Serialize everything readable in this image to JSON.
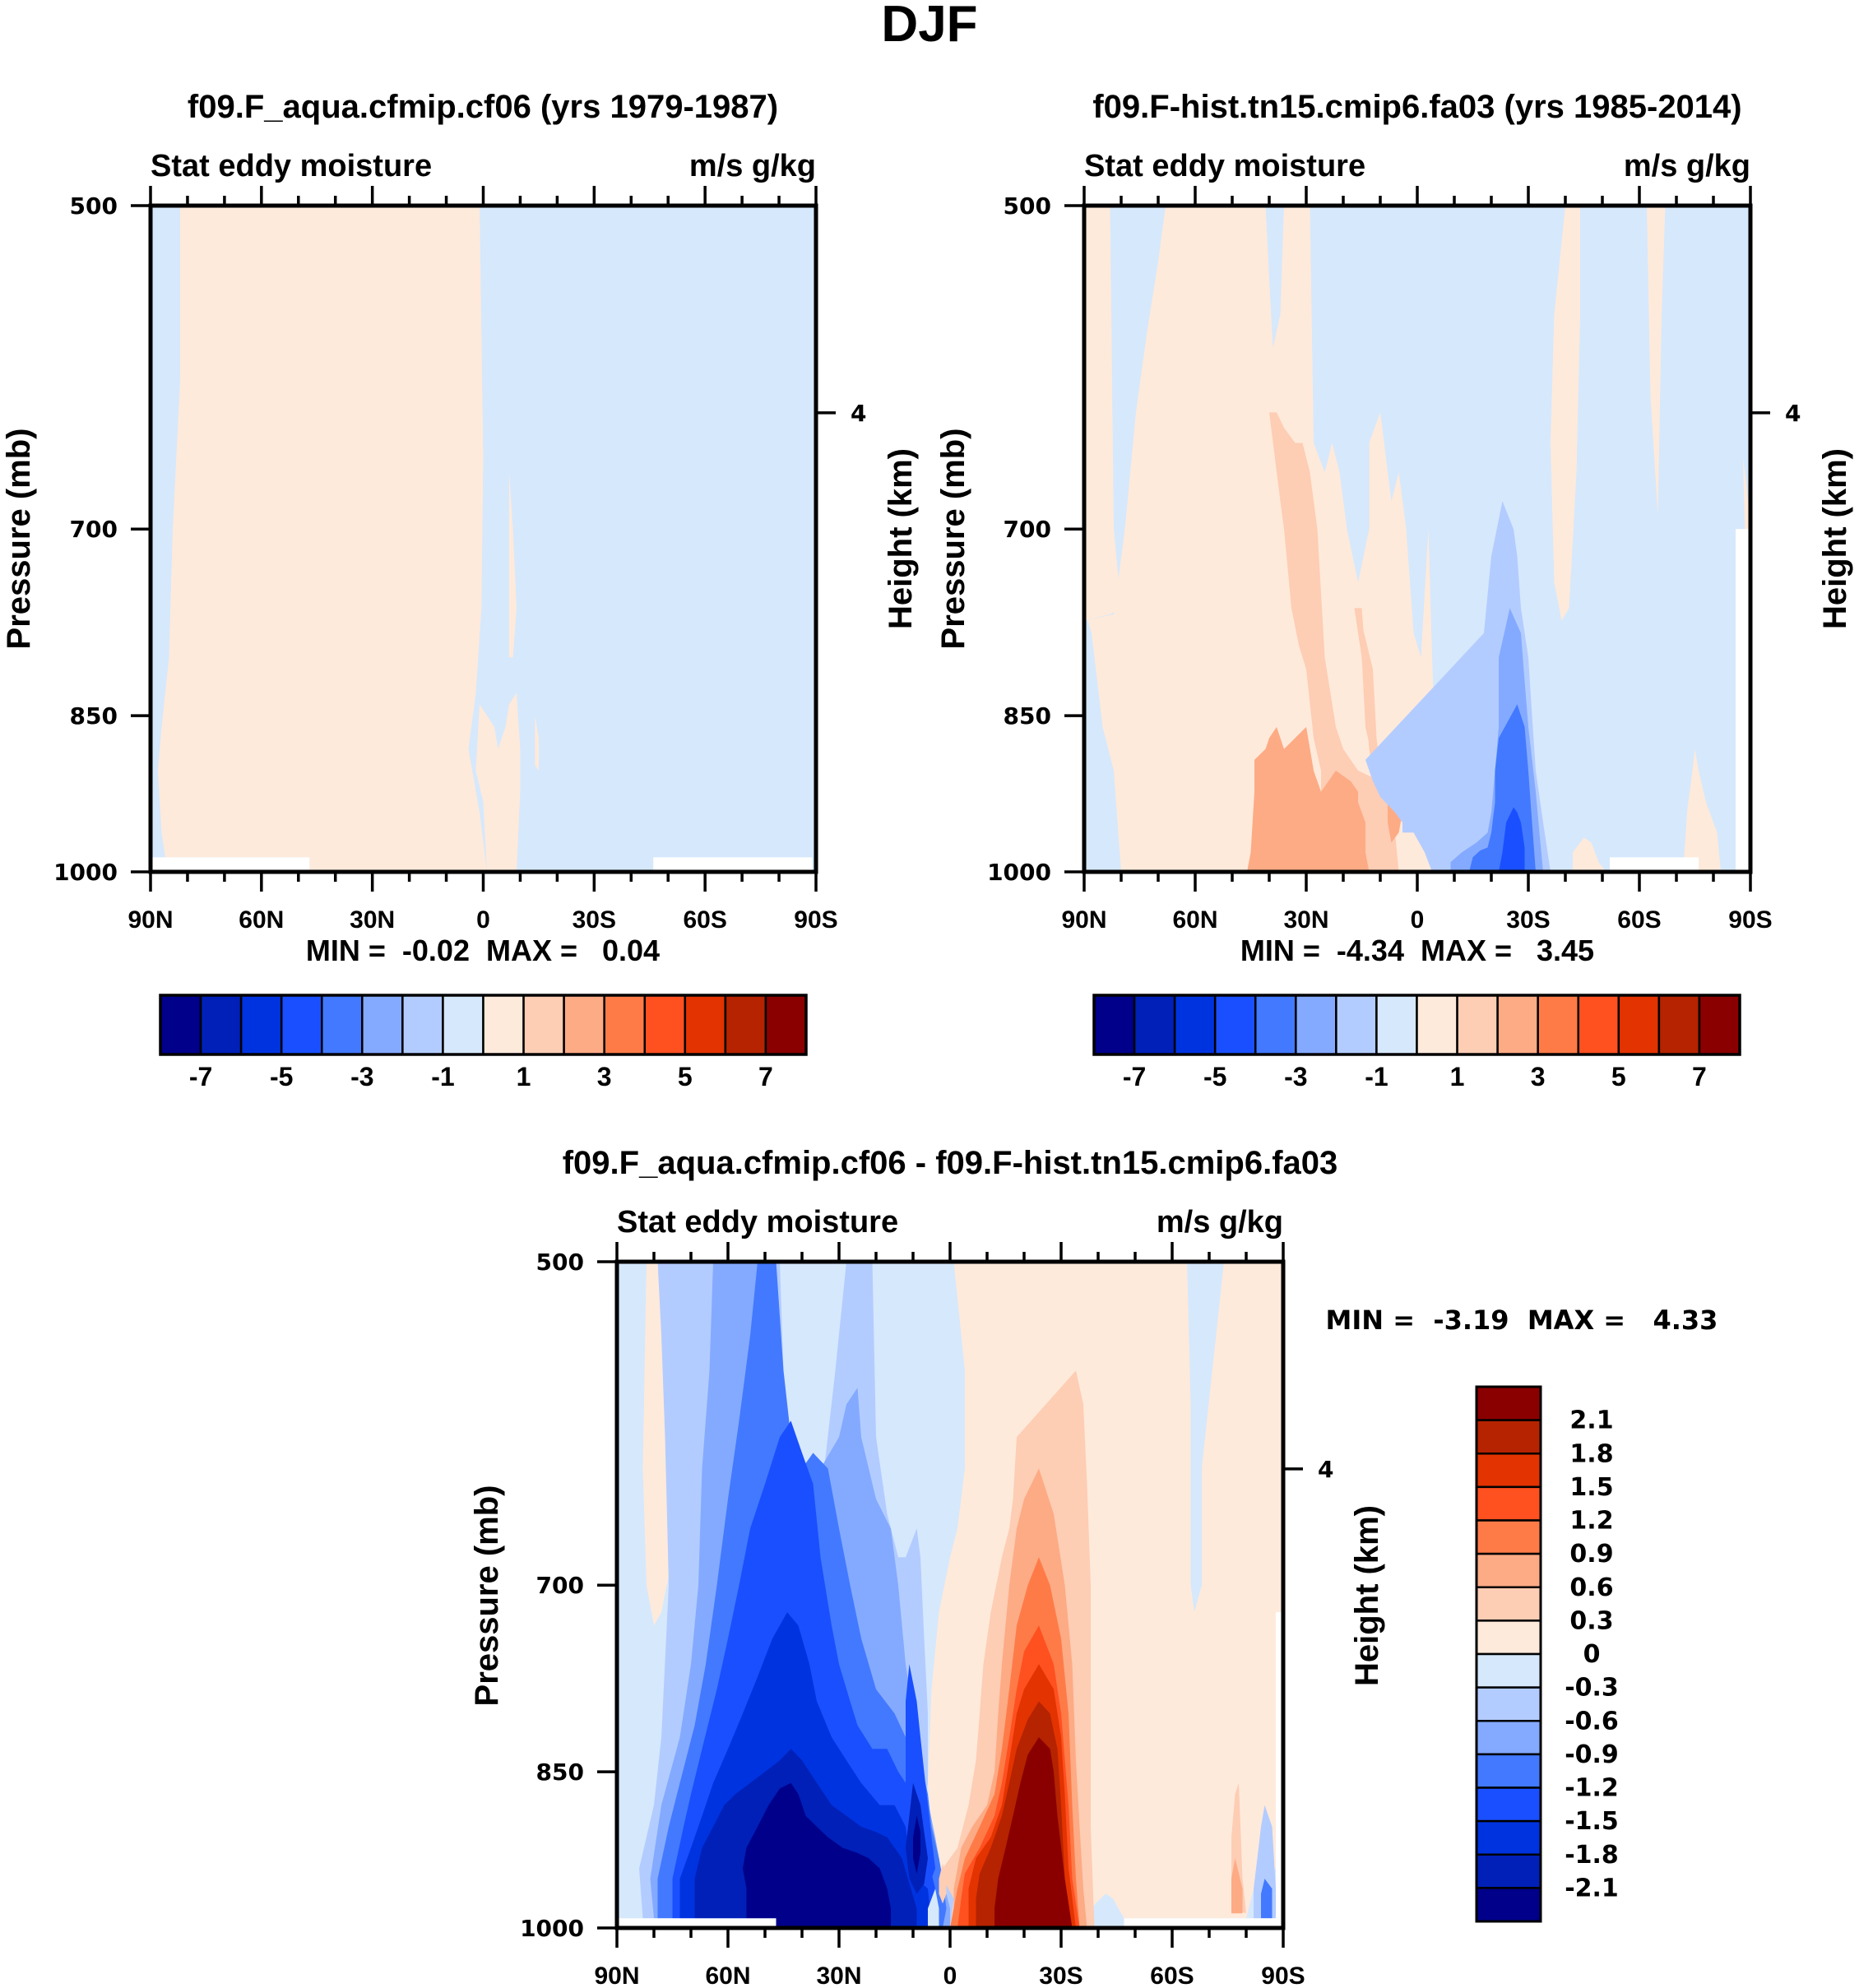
{
  "figure": {
    "title": "DJF"
  },
  "colors": {
    "palette16": [
      "#00008a",
      "#0020b8",
      "#0033e0",
      "#1a4fff",
      "#4279ff",
      "#84aaff",
      "#b3ccff",
      "#d6e8fc",
      "#feeadb",
      "#fdcdb4",
      "#fdab85",
      "#fe7b48",
      "#ff5020",
      "#e33300",
      "#b52300",
      "#8a0000"
    ],
    "missing": "#ffffff"
  },
  "panels": [
    {
      "id": "cf06",
      "title": "f09.F_aqua.cfmip.cf06 (yrs 1979-1987)",
      "left_label": "Stat eddy moisture",
      "right_label": "m/s g/kg",
      "ylabel": "Pressure (mb)",
      "y2label": "Height (km)",
      "stats": "MIN =  -0.02  MAX =   0.04",
      "min": -0.02,
      "max": 0.04
    },
    {
      "id": "fa03",
      "title": "f09.F-hist.tn15.cmip6.fa03 (yrs 1985-2014)",
      "left_label": "Stat eddy moisture",
      "right_label": "m/s g/kg",
      "ylabel": "Pressure (mb)",
      "y2label": "Height (km)",
      "stats": "MIN =  -4.34  MAX =   3.45",
      "min": -4.34,
      "max": 3.45
    },
    {
      "id": "diff",
      "title": "f09.F_aqua.cfmip.cf06 - f09.F-hist.tn15.cmip6.fa03",
      "left_label": "Stat eddy moisture",
      "right_label": "m/s g/kg",
      "ylabel": "Pressure (mb)",
      "y2label": "Height (km)",
      "stats": "MIN =  -3.19  MAX =   4.33",
      "min": -3.19,
      "max": 4.33
    }
  ],
  "colorbars": {
    "main": {
      "levels": [
        -7,
        -6,
        -5,
        -4,
        -3,
        -2,
        -1,
        0,
        1,
        2,
        3,
        4,
        5,
        6,
        7
      ],
      "labels": [
        "-7",
        "-5",
        "-3",
        "-1",
        "1",
        "3",
        "5",
        "7"
      ]
    },
    "diff": {
      "levels": [
        -2.1,
        -1.8,
        -1.5,
        -1.2,
        -0.9,
        -0.6,
        -0.3,
        0,
        0.3,
        0.6,
        0.9,
        1.2,
        1.5,
        1.8,
        2.1
      ],
      "labels": [
        "2.1",
        "1.8",
        "1.5",
        "1.2",
        "0.9",
        "0.6",
        "0.3",
        "0",
        "-0.3",
        "-0.6",
        "-0.9",
        "-1.2",
        "-1.5",
        "-1.8",
        "-2.1"
      ]
    }
  },
  "chart_data": [
    {
      "type": "heatmap",
      "title": "f09.F_aqua.cfmip.cf06 (yrs 1979-1987)",
      "subtitle_left": "Stat eddy moisture",
      "subtitle_right": "m/s g/kg",
      "xlabel": "",
      "ylabel": "Pressure (mb)",
      "y2label": "Height (km)",
      "x_ticks": [
        "90N",
        "60N",
        "30N",
        "0",
        "30S",
        "60S",
        "90S"
      ],
      "x_range": [
        90,
        -90
      ],
      "y_ticks": [
        500,
        700,
        850,
        1000
      ],
      "y_scale": "log-pressure",
      "y_range": [
        500,
        1000
      ],
      "y2_ticks": [
        4
      ],
      "stats": {
        "min": -0.02,
        "max": 0.04
      },
      "field_regions": [
        {
          "level_index": 8,
          "desc": "weak positive 0..1",
          "lat": [
            80,
            0
          ],
          "p": [
            500,
            1000
          ]
        },
        {
          "level_index": 7,
          "desc": "weak negative -1..0",
          "lat": [
            0,
            -90
          ],
          "p": [
            500,
            1000
          ]
        },
        {
          "level_index": 7,
          "desc": "weak negative -1..0",
          "lat": [
            90,
            82
          ],
          "p": [
            500,
            1000
          ]
        }
      ]
    },
    {
      "type": "heatmap",
      "title": "f09.F-hist.tn15.cmip6.fa03 (yrs 1985-2014)",
      "subtitle_left": "Stat eddy moisture",
      "subtitle_right": "m/s g/kg",
      "ylabel": "Pressure (mb)",
      "y2label": "Height (km)",
      "x_ticks": [
        "90N",
        "60N",
        "30N",
        "0",
        "30S",
        "60S",
        "90S"
      ],
      "x_range": [
        90,
        -90
      ],
      "y_ticks": [
        500,
        700,
        850,
        1000
      ],
      "y_scale": "log-pressure",
      "y_range": [
        500,
        1000
      ],
      "y2_ticks": [
        4
      ],
      "stats": {
        "min": -4.34,
        "max": 3.45
      },
      "features": [
        {
          "desc": "positive maximum ~3 near 40N at 900-1000 mb",
          "lat": 40,
          "p": 950,
          "value": 3.45
        },
        {
          "desc": "negative minimum ~-4 near 27S at 900-1000 mb",
          "lat": -27,
          "p": 960,
          "value": -4.34
        }
      ]
    },
    {
      "type": "heatmap",
      "title": "f09.F_aqua.cfmip.cf06 - f09.F-hist.tn15.cmip6.fa03",
      "subtitle_left": "Stat eddy moisture",
      "subtitle_right": "m/s g/kg",
      "ylabel": "Pressure (mb)",
      "y2label": "Height (km)",
      "x_ticks": [
        "90N",
        "60N",
        "30N",
        "0",
        "30S",
        "60S",
        "90S"
      ],
      "x_range": [
        90,
        -90
      ],
      "y_ticks": [
        500,
        700,
        850,
        1000
      ],
      "y_scale": "log-pressure",
      "y_range": [
        500,
        1000
      ],
      "y2_ticks": [
        4
      ],
      "stats": {
        "min": -3.19,
        "max": 4.33
      },
      "features": [
        {
          "desc": "negative minimum below -2.1 near 40N at 880-1000 mb",
          "lat": 40,
          "p": 950,
          "value": -3.19
        },
        {
          "desc": "positive maximum above 2.1 near 25S at 780-1000 mb",
          "lat": -25,
          "p": 920,
          "value": 4.33
        }
      ]
    }
  ]
}
